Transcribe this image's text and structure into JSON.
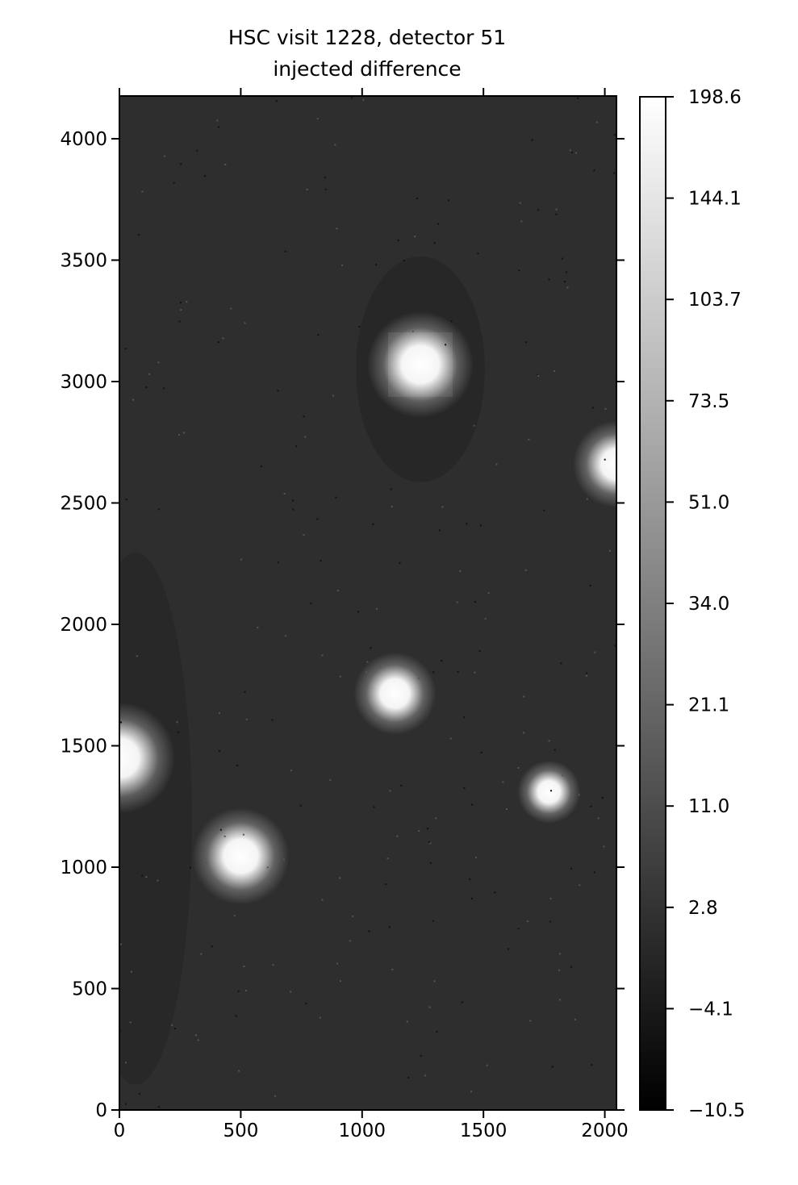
{
  "chart_data": {
    "type": "heatmap",
    "title": "HSC visit 1228, detector 51",
    "subtitle": "injected difference",
    "xlabel": "",
    "ylabel": "",
    "xlim": [
      0,
      2048
    ],
    "ylim": [
      0,
      4176
    ],
    "x_ticks": [
      "0",
      "500",
      "1000",
      "1500",
      "2000"
    ],
    "y_ticks": [
      "0",
      "500",
      "1000",
      "1500",
      "2000",
      "2500",
      "3000",
      "3500",
      "4000"
    ],
    "colormap": "gray",
    "background_color": "#2e2e2e",
    "colorbar": {
      "min": -10.5,
      "max": 198.6,
      "stretch": "nonlinear",
      "ticks": [
        "−10.5",
        "−4.1",
        "2.8",
        "11.0",
        "21.1",
        "34.0",
        "51.0",
        "73.5",
        "103.7",
        "144.1",
        "198.6"
      ]
    },
    "sources": [
      {
        "x": 1240,
        "y": 3070,
        "radius": 220
      },
      {
        "x": 0,
        "y": 1450,
        "radius": 230
      },
      {
        "x": 500,
        "y": 1045,
        "radius": 200
      },
      {
        "x": 1135,
        "y": 1715,
        "radius": 170
      },
      {
        "x": 1770,
        "y": 1310,
        "radius": 130
      },
      {
        "x": 2048,
        "y": 2660,
        "radius": 180
      }
    ]
  }
}
